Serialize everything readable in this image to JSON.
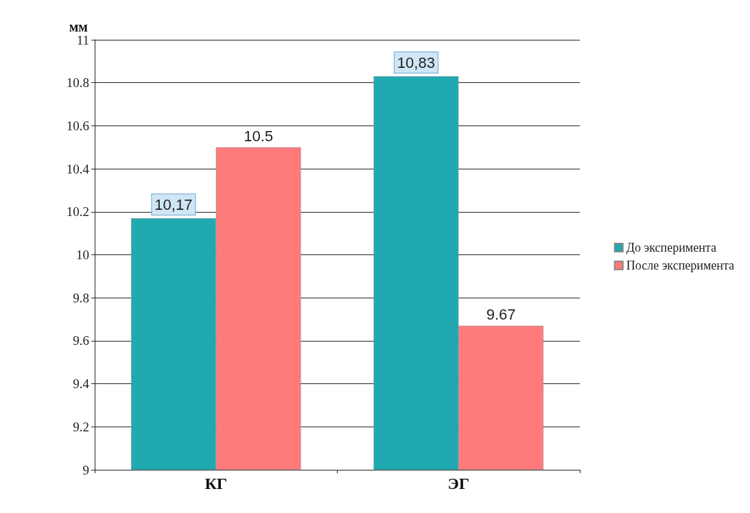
{
  "chart_data": {
    "type": "bar",
    "ylabel": "мм",
    "categories": [
      "КГ",
      "ЭГ"
    ],
    "series": [
      {
        "name": "До эксперимента",
        "color": "#20a9b0",
        "values": [
          10.17,
          10.83
        ],
        "value_labels": [
          "10,17",
          "10,83"
        ]
      },
      {
        "name": "После эксперимента",
        "color": "#ff7b7b",
        "values": [
          10.5,
          9.67
        ],
        "value_labels": [
          "10.5",
          "9.67"
        ]
      }
    ],
    "ylim": [
      9,
      11
    ],
    "yticks": [
      9,
      9.2,
      9.4,
      9.6,
      9.8,
      10,
      10.2,
      10.4,
      10.6,
      10.8,
      11
    ],
    "grid": "y",
    "legend": "right"
  }
}
